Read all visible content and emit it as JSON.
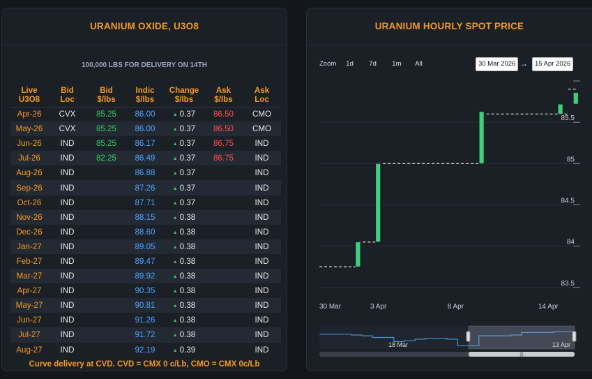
{
  "left": {
    "title": "URANIUM OXIDE, U3O8",
    "subtitle": "100,000 LBS FOR DELIVERY ON 14TH",
    "headers": [
      [
        "Live",
        "U3O8"
      ],
      [
        "Bid",
        "Loc"
      ],
      [
        "Bid",
        "$/lbs"
      ],
      [
        "Indic",
        "$/lbs"
      ],
      [
        "Change",
        "$/lbs"
      ],
      [
        "Ask",
        "$/lbs"
      ],
      [
        "Ask",
        "Loc"
      ]
    ],
    "rows": [
      {
        "month": "Apr-26",
        "bid_loc": "CVX",
        "bid": "85.25",
        "indic": "86.00",
        "change": "0.37",
        "ask": "86.50",
        "ask_loc": "CMO"
      },
      {
        "month": "May-26",
        "bid_loc": "CVX",
        "bid": "85.25",
        "indic": "86.00",
        "change": "0.37",
        "ask": "86.50",
        "ask_loc": "CMO"
      },
      {
        "month": "Jun-26",
        "bid_loc": "IND",
        "bid": "85.25",
        "indic": "86.17",
        "change": "0.37",
        "ask": "86.75",
        "ask_loc": "IND"
      },
      {
        "month": "Jul-26",
        "bid_loc": "IND",
        "bid": "82.25",
        "indic": "86.49",
        "change": "0.37",
        "ask": "86.75",
        "ask_loc": "IND"
      },
      {
        "month": "Aug-26",
        "bid_loc": "IND",
        "bid": "",
        "indic": "86.88",
        "change": "0.37",
        "ask": "",
        "ask_loc": "IND"
      },
      {
        "month": "Sep-26",
        "bid_loc": "IND",
        "bid": "",
        "indic": "87.26",
        "change": "0.37",
        "ask": "",
        "ask_loc": "IND"
      },
      {
        "month": "Oct-26",
        "bid_loc": "IND",
        "bid": "",
        "indic": "87.71",
        "change": "0.37",
        "ask": "",
        "ask_loc": "IND"
      },
      {
        "month": "Nov-26",
        "bid_loc": "IND",
        "bid": "",
        "indic": "88.15",
        "change": "0.38",
        "ask": "",
        "ask_loc": "IND"
      },
      {
        "month": "Dec-26",
        "bid_loc": "IND",
        "bid": "",
        "indic": "88.60",
        "change": "0.38",
        "ask": "",
        "ask_loc": "IND"
      },
      {
        "month": "Jan-27",
        "bid_loc": "IND",
        "bid": "",
        "indic": "89.05",
        "change": "0.38",
        "ask": "",
        "ask_loc": "IND"
      },
      {
        "month": "Feb-27",
        "bid_loc": "IND",
        "bid": "",
        "indic": "89.47",
        "change": "0.38",
        "ask": "",
        "ask_loc": "IND"
      },
      {
        "month": "Mar-27",
        "bid_loc": "IND",
        "bid": "",
        "indic": "89.92",
        "change": "0.38",
        "ask": "",
        "ask_loc": "IND"
      },
      {
        "month": "Apr-27",
        "bid_loc": "IND",
        "bid": "",
        "indic": "90.35",
        "change": "0.38",
        "ask": "",
        "ask_loc": "IND"
      },
      {
        "month": "May-27",
        "bid_loc": "IND",
        "bid": "",
        "indic": "90.81",
        "change": "0.38",
        "ask": "",
        "ask_loc": "IND"
      },
      {
        "month": "Jun-27",
        "bid_loc": "IND",
        "bid": "",
        "indic": "91.26",
        "change": "0.38",
        "ask": "",
        "ask_loc": "IND"
      },
      {
        "month": "Jul-27",
        "bid_loc": "IND",
        "bid": "",
        "indic": "91.72",
        "change": "0.38",
        "ask": "",
        "ask_loc": "IND"
      },
      {
        "month": "Aug-27",
        "bid_loc": "IND",
        "bid": "",
        "indic": "92.19",
        "change": "0.39",
        "ask": "",
        "ask_loc": "IND"
      }
    ],
    "footer": "Curve delivery at CVD. CVD = CMX 0 c/Lb, CMO = CMX 0c/Lb"
  },
  "right": {
    "title": "URANIUM HOURLY SPOT PRICE",
    "zoom_label": "Zoom",
    "zoom_buttons": [
      "1d",
      "7d",
      "1m",
      "All"
    ],
    "date_from": "30 Mar 2026",
    "date_arrow": "→",
    "date_to": "15 Apr 2026",
    "navigator_labels": [
      "18 Mar",
      "13 Apr"
    ]
  },
  "colors": {
    "accent": "#f39a21",
    "bid": "#33cc66",
    "indic": "#4da3ff",
    "ask": "#ff4d4d",
    "candle": "#3ecf7a"
  },
  "chart_data": {
    "type": "candlestick",
    "title": "URANIUM HOURLY SPOT PRICE",
    "x_tick_labels": [
      "30 Mar",
      "3 Apr",
      "8 Apr",
      "14 Apr"
    ],
    "x_tick_days": [
      0,
      4,
      9,
      15
    ],
    "y_ticks": [
      83.5,
      84,
      84.5,
      85,
      85.5
    ],
    "y_tick_labels": [
      "83.5",
      "84",
      "84.5",
      "85",
      "85.5"
    ],
    "ylim": [
      83.38,
      86.0
    ],
    "xlim_days": [
      0,
      16.7
    ],
    "step_segments": [
      {
        "from_day": 0.0,
        "to_day": 2.5,
        "price": 83.75
      },
      {
        "from_day": 2.5,
        "to_day": 3.8,
        "price": 84.05
      },
      {
        "from_day": 3.8,
        "to_day": 10.5,
        "price": 85.0
      },
      {
        "from_day": 10.5,
        "to_day": 16.1,
        "price": 85.6
      },
      {
        "from_day": 16.1,
        "to_day": 16.7,
        "price": 85.9
      }
    ],
    "candles": [
      {
        "day": 2.5,
        "open": 83.75,
        "close": 84.05
      },
      {
        "day": 3.8,
        "open": 84.05,
        "close": 85.0
      },
      {
        "day": 10.5,
        "open": 85.0,
        "close": 85.63
      },
      {
        "day": 15.6,
        "open": 85.6,
        "close": 85.72
      },
      {
        "day": 16.6,
        "open": 85.72,
        "close": 85.86
      }
    ],
    "navigator_series": [
      84.3,
      84.3,
      84.3,
      84.25,
      84.2,
      84.1,
      84.1,
      83.85,
      83.9,
      84.0,
      84.05,
      84.05,
      84.0,
      83.6,
      83.6,
      84.2,
      84.2,
      84.2,
      84.25,
      84.4,
      84.4,
      84.4,
      84.45,
      84.45,
      84.5
    ]
  }
}
